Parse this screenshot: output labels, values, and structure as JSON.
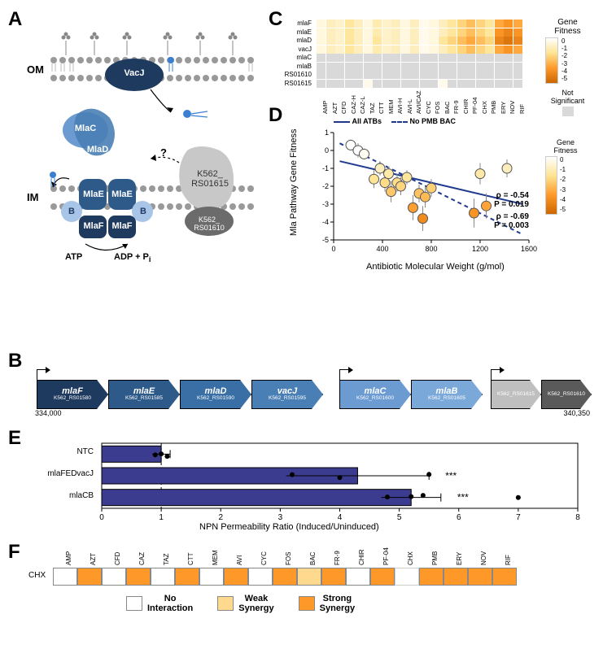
{
  "panelA": {
    "labels": {
      "OM": "OM",
      "IM": "IM",
      "VacJ": "VacJ",
      "MlaC": "MlaC",
      "MlaD": "MlaD",
      "MlaE": "MlaE",
      "MlaF": "MlaF",
      "B": "B",
      "K1615": "K562_\nRS01615",
      "K1610": "K562_\nRS01610",
      "ATP": "ATP",
      "ADP": "ADP + P",
      "i": "i",
      "q": "?"
    },
    "colors": {
      "dark": "#1f3a5f",
      "mid": "#2e5a8a",
      "light": "#6b9bd1",
      "pale": "#a8c5e8",
      "grey": "#bfbfbf",
      "dgrey": "#6b6b6b"
    }
  },
  "panelB": {
    "genes": [
      {
        "name": "mlaF",
        "sub": "K562_RS01580",
        "x": 20,
        "w": 86,
        "color": "#1f3a5f"
      },
      {
        "name": "mlaE",
        "sub": "K562_RS01585",
        "x": 108,
        "w": 86,
        "color": "#2e5a8a"
      },
      {
        "name": "mlaD",
        "sub": "K562_RS01590",
        "x": 196,
        "w": 86,
        "color": "#3a6fa5"
      },
      {
        "name": "vacJ",
        "sub": "K562_RS01595",
        "x": 284,
        "w": 86,
        "color": "#4a7fb5"
      },
      {
        "name": "mlaC",
        "sub": "K562_RS01600",
        "x": 392,
        "w": 86,
        "color": "#6b9bd1"
      },
      {
        "name": "mlaB",
        "sub": "K562_RS01605",
        "x": 480,
        "w": 86,
        "color": "#7aa8d8"
      },
      {
        "name": "",
        "sub": "K562_RS01615",
        "x": 578,
        "w": 60,
        "color": "#bfbfbf"
      },
      {
        "name": "",
        "sub": "K562_RS01610",
        "x": 640,
        "w": 60,
        "color": "#5a5a5a"
      }
    ],
    "promoters": [
      20,
      392,
      578
    ],
    "coord_left": "334,000",
    "coord_right": "340,350"
  },
  "panelC": {
    "row_labels": [
      "mlaF",
      "mlaE",
      "mlaD",
      "vacJ",
      "mlaC",
      "mlaB",
      "RS01610",
      "RS01615"
    ],
    "col_labels": [
      "AMP",
      "AZT",
      "CFD",
      "CAZ-H",
      "CAZ-L",
      "TAZ",
      "CTT",
      "MEM",
      "AVI-H",
      "AVI-L",
      "AVI/CAZ",
      "CYC",
      "FOS",
      "BAC",
      "FR-9",
      "CHIR",
      "PF-04",
      "CHX",
      "PMB",
      "ERY",
      "NOV",
      "RIF"
    ],
    "title": "Gene\nFitness",
    "cbar_ticks": [
      "0",
      "-1",
      "-2",
      "-3",
      "-4",
      "-5"
    ],
    "ns_label": "Not\nSignificant",
    "ns_color": "#d9d9d9",
    "values": [
      [
        -0.5,
        -1,
        -0.8,
        -1.5,
        -1,
        -0.5,
        -1.2,
        -0.8,
        -1,
        -0.5,
        -1,
        -0.3,
        -0.5,
        -1,
        -1.5,
        -2,
        -2.5,
        -2,
        -1.5,
        -3,
        -3.5,
        -3
      ],
      [
        -0.5,
        -1,
        -0.8,
        -1.5,
        -1,
        -0.5,
        -1.2,
        -0.8,
        -1,
        -0.5,
        -1,
        -0.3,
        -0.5,
        -1,
        -1.5,
        -2,
        -2.5,
        -2,
        -1.5,
        -3.5,
        -4,
        -3.5
      ],
      [
        -0.5,
        -1,
        -0.8,
        -1.5,
        -1,
        -0.5,
        -1.5,
        -0.8,
        -1,
        -0.5,
        -1,
        -0.3,
        -0.5,
        -1.5,
        -2,
        -2.5,
        -3,
        -2.5,
        -2,
        -4,
        -4.5,
        -4
      ],
      [
        -0.5,
        -1,
        -0.8,
        -1.5,
        -1,
        -0.5,
        -1.2,
        -0.8,
        -1,
        -0.5,
        -1,
        -0.3,
        -0.5,
        -1,
        -1.5,
        -2,
        -2.5,
        -2,
        -1.5,
        -3,
        -3.5,
        -3
      ],
      [
        null,
        null,
        null,
        null,
        null,
        null,
        null,
        null,
        null,
        null,
        null,
        null,
        null,
        null,
        null,
        null,
        null,
        null,
        null,
        null,
        null,
        null
      ],
      [
        null,
        null,
        null,
        null,
        null,
        null,
        null,
        null,
        null,
        null,
        null,
        null,
        null,
        null,
        null,
        null,
        null,
        null,
        null,
        null,
        null,
        null
      ],
      [
        null,
        null,
        null,
        null,
        null,
        null,
        null,
        null,
        null,
        null,
        null,
        null,
        null,
        null,
        null,
        null,
        null,
        null,
        null,
        null,
        null,
        null
      ],
      [
        null,
        null,
        null,
        null,
        null,
        -0.3,
        null,
        null,
        null,
        null,
        null,
        null,
        null,
        -0.3,
        null,
        null,
        null,
        null,
        null,
        null,
        null,
        null
      ]
    ]
  },
  "panelD": {
    "xlabel": "Antibiotic Molecular Weight (g/mol)",
    "ylabel": "Mla Pathway Gene Fitness",
    "xlim": [
      0,
      1600
    ],
    "ylim": [
      -5,
      1
    ],
    "xticks": [
      0,
      400,
      800,
      1200,
      1600
    ],
    "yticks": [
      -5,
      -4,
      -3,
      -2,
      -1,
      0,
      1
    ],
    "legend": {
      "all": "All ATBs",
      "nopmb": "No PMB BAC"
    },
    "rho1": "ρ = -0.54",
    "p1": "P = 0.019",
    "rho2": "ρ = -0.69",
    "p2": "P = 0.003",
    "cbar_title": "Gene\nFitness",
    "cbar_ticks": [
      "0",
      "-1",
      "-2",
      "-3",
      "-4",
      "-5"
    ],
    "points": [
      {
        "x": 140,
        "y": 0.3,
        "f": 0.3,
        "ey": 0.3
      },
      {
        "x": 200,
        "y": 0.0,
        "f": 0,
        "ey": 0.4
      },
      {
        "x": 250,
        "y": -0.2,
        "f": -0.2,
        "ey": 0.3
      },
      {
        "x": 330,
        "y": -1.6,
        "f": -1.6,
        "ey": 0.5
      },
      {
        "x": 380,
        "y": -1.0,
        "f": -1.0,
        "ey": 0.4
      },
      {
        "x": 420,
        "y": -1.8,
        "f": -1.8,
        "ey": 0.5
      },
      {
        "x": 450,
        "y": -1.3,
        "f": -1.3,
        "ey": 0.4
      },
      {
        "x": 470,
        "y": -2.3,
        "f": -2.3,
        "ey": 0.6
      },
      {
        "x": 520,
        "y": -1.8,
        "f": -1.8,
        "ey": 0.5
      },
      {
        "x": 550,
        "y": -2.0,
        "f": -2.0,
        "ey": 0.5
      },
      {
        "x": 600,
        "y": -1.5,
        "f": -1.5,
        "ey": 0.4
      },
      {
        "x": 650,
        "y": -3.2,
        "f": -3.2,
        "ey": 0.7
      },
      {
        "x": 700,
        "y": -2.4,
        "f": -2.4,
        "ey": 0.5
      },
      {
        "x": 730,
        "y": -3.8,
        "f": -3.8,
        "ey": 0.7
      },
      {
        "x": 750,
        "y": -2.6,
        "f": -2.6,
        "ey": 0.6
      },
      {
        "x": 800,
        "y": -2.1,
        "f": -2.1,
        "ey": 0.5
      },
      {
        "x": 1150,
        "y": -3.5,
        "f": -3.5,
        "ey": 0.8
      },
      {
        "x": 1200,
        "y": -1.3,
        "f": -1.3,
        "ey": 0.6
      },
      {
        "x": 1250,
        "y": -3.1,
        "f": -3.1,
        "ey": 0.7
      },
      {
        "x": 1420,
        "y": -1.0,
        "f": -1.0,
        "ey": 0.5
      }
    ],
    "line_all": {
      "x1": 50,
      "y1": -0.6,
      "x2": 1550,
      "y2": -3.0
    },
    "line_no": {
      "x1": 50,
      "y1": 0.4,
      "x2": 1550,
      "y2": -4.7
    }
  },
  "panelE": {
    "xlabel": "NPN Permeability Ratio (Induced/Uninduced)",
    "categories": [
      "NTC",
      "mlaFEDvacJ",
      "mlaCB"
    ],
    "values": [
      1.0,
      4.3,
      5.2
    ],
    "errors": [
      0.15,
      1.2,
      0.5
    ],
    "points": [
      [
        0.9,
        1.0,
        1.1
      ],
      [
        3.2,
        4.0,
        5.5
      ],
      [
        4.8,
        5.2,
        5.4,
        7.0
      ]
    ],
    "sig": [
      "",
      "***",
      "***"
    ],
    "xlim": [
      0,
      8
    ],
    "xticks": [
      0,
      1,
      2,
      3,
      4,
      5,
      6,
      7,
      8
    ],
    "bar_color": "#3b3b8f"
  },
  "panelF": {
    "row_label": "CHX",
    "cols": [
      "AMP",
      "AZT",
      "CFD",
      "CAZ",
      "TAZ",
      "CTT",
      "MEM",
      "AVI",
      "CYC",
      "FOS",
      "BAC",
      "FR-9",
      "CHIR",
      "PF-04",
      "CHX",
      "PMB",
      "ERY",
      "NOV",
      "RIF"
    ],
    "values": [
      0,
      2,
      0,
      2,
      0,
      2,
      0,
      2,
      0,
      2,
      1,
      2,
      0,
      2,
      null,
      2,
      2,
      2,
      2
    ],
    "colors": {
      "0": "#ffffff",
      "1": "#fed98e",
      "2": "#fe9929",
      "null": "#ffffff"
    },
    "legend": [
      {
        "label": "No\nInteraction",
        "color": "#ffffff"
      },
      {
        "label": "Weak\nSynergy",
        "color": "#fed98e"
      },
      {
        "label": "Strong\nSynergy",
        "color": "#fe9929"
      }
    ]
  }
}
